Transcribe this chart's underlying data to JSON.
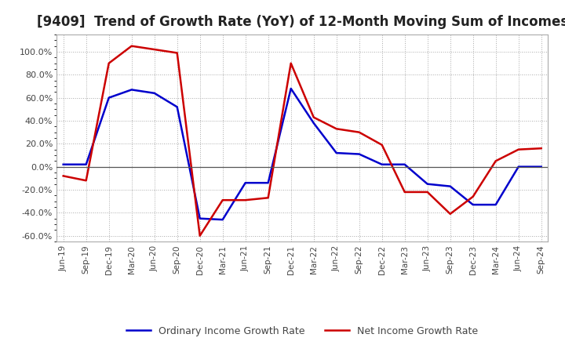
{
  "title": "[9409]  Trend of Growth Rate (YoY) of 12-Month Moving Sum of Incomes",
  "title_fontsize": 12,
  "ylim": [
    -65,
    115
  ],
  "yticks": [
    -60,
    -40,
    -20,
    0,
    20,
    40,
    60,
    80,
    100
  ],
  "background_color": "#ffffff",
  "grid_color": "#aaaaaa",
  "ordinary_color": "#0000cc",
  "net_color": "#cc0000",
  "legend_labels": [
    "Ordinary Income Growth Rate",
    "Net Income Growth Rate"
  ],
  "x_labels": [
    "Jun-19",
    "Sep-19",
    "Dec-19",
    "Mar-20",
    "Jun-20",
    "Sep-20",
    "Dec-20",
    "Mar-21",
    "Jun-21",
    "Sep-21",
    "Dec-21",
    "Mar-22",
    "Jun-22",
    "Sep-22",
    "Dec-22",
    "Mar-23",
    "Jun-23",
    "Sep-23",
    "Dec-23",
    "Mar-24",
    "Jun-24",
    "Sep-24"
  ],
  "ordinary_income": [
    2,
    2,
    60,
    67,
    64,
    52,
    -45,
    -46,
    -14,
    -14,
    68,
    38,
    12,
    11,
    2,
    2,
    -15,
    -17,
    -33,
    -33,
    0,
    0
  ],
  "net_income": [
    -8,
    -12,
    90,
    105,
    102,
    99,
    -60,
    -29,
    -29,
    -27,
    90,
    43,
    33,
    30,
    19,
    -22,
    -22,
    -41,
    -26,
    5,
    15,
    16
  ]
}
